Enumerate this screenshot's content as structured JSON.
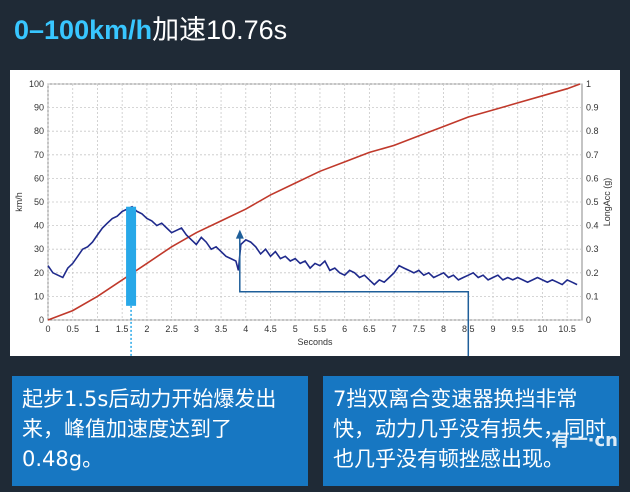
{
  "header": {
    "title_accent": "0–100km/h",
    "title_rest": "加速10.76s"
  },
  "chart_data": {
    "type": "line",
    "title": "",
    "xlabel": "Seconds",
    "ylabel_left": "km/h",
    "ylabel_right": "LongAcc (g)",
    "xlim": [
      0,
      10.8
    ],
    "ylim_left": [
      0,
      100
    ],
    "ylim_right": [
      0,
      1
    ],
    "x_ticks": [
      "0",
      "0.5",
      "1",
      "1.5",
      "2",
      "2.5",
      "3",
      "3.5",
      "4",
      "4.5",
      "5",
      "5.5",
      "6",
      "6.5",
      "7",
      "7.5",
      "8",
      "8.5",
      "9",
      "9.5",
      "10",
      "10.5"
    ],
    "y_left_ticks": [
      "0",
      "10",
      "20",
      "30",
      "40",
      "50",
      "60",
      "70",
      "80",
      "90",
      "100"
    ],
    "y_right_ticks": [
      "0",
      "0.1",
      "0.2",
      "0.3",
      "0.4",
      "0.5",
      "0.6",
      "0.7",
      "0.8",
      "0.9",
      "1"
    ],
    "grid": true,
    "series": [
      {
        "name": "",
        "axis": "left",
        "color": "#c0392b",
        "x": [
          0,
          0.5,
          1,
          1.5,
          2,
          2.5,
          3,
          3.5,
          4,
          4.5,
          5,
          5.5,
          6,
          6.5,
          7,
          7.5,
          8,
          8.5,
          9,
          9.5,
          10,
          10.5,
          10.76
        ],
        "values": [
          0,
          4,
          10,
          17,
          24,
          31,
          37,
          42,
          47,
          53,
          58,
          63,
          67,
          71,
          74,
          78,
          82,
          86,
          89,
          92,
          95,
          98,
          100
        ]
      },
      {
        "name": "",
        "axis": "right",
        "color": "#1f2a8c",
        "x": [
          0,
          0.1,
          0.2,
          0.3,
          0.4,
          0.5,
          0.6,
          0.7,
          0.8,
          0.9,
          1,
          1.1,
          1.2,
          1.3,
          1.4,
          1.5,
          1.6,
          1.7,
          1.8,
          1.9,
          2,
          2.1,
          2.2,
          2.3,
          2.4,
          2.5,
          2.6,
          2.7,
          2.8,
          2.9,
          3,
          3.1,
          3.2,
          3.3,
          3.4,
          3.5,
          3.6,
          3.7,
          3.8,
          3.85,
          3.9,
          4,
          4.1,
          4.2,
          4.3,
          4.4,
          4.5,
          4.6,
          4.7,
          4.8,
          4.9,
          5,
          5.1,
          5.2,
          5.3,
          5.4,
          5.5,
          5.6,
          5.7,
          5.8,
          5.9,
          6,
          6.1,
          6.2,
          6.3,
          6.4,
          6.5,
          6.6,
          6.7,
          6.8,
          6.9,
          7,
          7.1,
          7.2,
          7.3,
          7.4,
          7.5,
          7.6,
          7.7,
          7.8,
          7.9,
          8,
          8.1,
          8.2,
          8.3,
          8.4,
          8.5,
          8.6,
          8.7,
          8.8,
          8.9,
          9,
          9.1,
          9.2,
          9.3,
          9.4,
          9.5,
          9.6,
          9.7,
          9.8,
          9.9,
          10,
          10.1,
          10.2,
          10.3,
          10.4,
          10.5,
          10.6,
          10.7
        ],
        "values": [
          0.23,
          0.2,
          0.19,
          0.18,
          0.22,
          0.24,
          0.27,
          0.3,
          0.31,
          0.33,
          0.36,
          0.39,
          0.41,
          0.43,
          0.44,
          0.46,
          0.47,
          0.48,
          0.46,
          0.45,
          0.43,
          0.42,
          0.4,
          0.41,
          0.39,
          0.37,
          0.38,
          0.39,
          0.36,
          0.34,
          0.32,
          0.35,
          0.33,
          0.3,
          0.31,
          0.29,
          0.27,
          0.26,
          0.25,
          0.21,
          0.32,
          0.34,
          0.33,
          0.31,
          0.28,
          0.3,
          0.27,
          0.29,
          0.26,
          0.27,
          0.25,
          0.26,
          0.24,
          0.25,
          0.22,
          0.24,
          0.23,
          0.25,
          0.21,
          0.22,
          0.2,
          0.19,
          0.21,
          0.2,
          0.18,
          0.19,
          0.17,
          0.15,
          0.17,
          0.16,
          0.18,
          0.2,
          0.23,
          0.22,
          0.21,
          0.2,
          0.21,
          0.19,
          0.2,
          0.18,
          0.19,
          0.2,
          0.18,
          0.19,
          0.17,
          0.18,
          0.19,
          0.2,
          0.18,
          0.19,
          0.17,
          0.18,
          0.19,
          0.17,
          0.18,
          0.17,
          0.18,
          0.17,
          0.16,
          0.17,
          0.18,
          0.17,
          0.16,
          0.17,
          0.16,
          0.15,
          0.17,
          0.16,
          0.15
        ]
      }
    ],
    "highlight": {
      "x": 1.68,
      "y_from": 0.06,
      "y_to": 0.48,
      "color": "#28a8e8"
    }
  },
  "captions": {
    "left": "起步1.5s后动力开始爆发出来，峰值加速度达到了0.48g。",
    "right": "7挡双离合变速器换挡非常快，动力几乎没有损失，同时也几乎没有顿挫感出现。"
  },
  "watermark": "有一·cn"
}
